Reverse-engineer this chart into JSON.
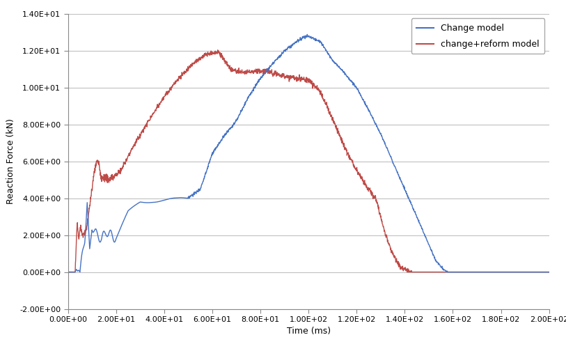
{
  "title": "",
  "xlabel": "Time (ms)",
  "ylabel": "Reaction Force (kN)",
  "xlim": [
    0,
    200
  ],
  "ylim": [
    -2,
    14
  ],
  "xticks": [
    0,
    20,
    40,
    60,
    80,
    100,
    120,
    140,
    160,
    180,
    200
  ],
  "yticks": [
    -2.0,
    0.0,
    2.0,
    4.0,
    6.0,
    8.0,
    10.0,
    12.0,
    14.0
  ],
  "legend_entries": [
    "Change model",
    "change+reform model"
  ],
  "blue_color": "#4472C4",
  "red_color": "#BE4B48",
  "line_width": 1.0,
  "background_color": "#FFFFFF",
  "grid_color": "#C0C0C0",
  "fig_width": 8.13,
  "fig_height": 5.04,
  "dpi": 100
}
